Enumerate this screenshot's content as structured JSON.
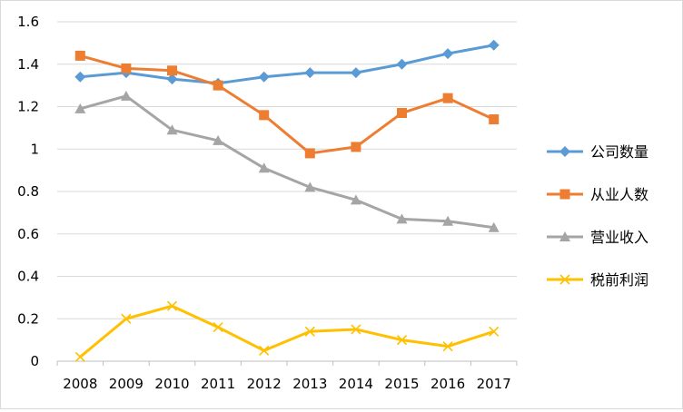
{
  "chart_data": {
    "type": "line",
    "title": "",
    "xlabel": "",
    "ylabel": "",
    "x": [
      "2008",
      "2009",
      "2010",
      "2011",
      "2012",
      "2013",
      "2014",
      "2015",
      "2016",
      "2017"
    ],
    "ylim": [
      0,
      1.6
    ],
    "yticks": [
      "0",
      "0.2",
      "0.4",
      "0.6",
      "0.8",
      "1",
      "1.2",
      "1.4",
      "1.6"
    ],
    "grid": true,
    "legend_position": "right",
    "series": [
      {
        "name": "公司数量",
        "color": "#5b9bd5",
        "marker": "diamond",
        "values": [
          1.34,
          1.36,
          1.33,
          1.31,
          1.34,
          1.36,
          1.36,
          1.4,
          1.45,
          1.49
        ]
      },
      {
        "name": "从业人数",
        "color": "#ed7d31",
        "marker": "square",
        "values": [
          1.44,
          1.38,
          1.37,
          1.3,
          1.16,
          0.98,
          1.01,
          1.17,
          1.24,
          1.14
        ]
      },
      {
        "name": "营业收入",
        "color": "#a5a5a5",
        "marker": "triangle",
        "values": [
          1.19,
          1.25,
          1.09,
          1.04,
          0.91,
          0.82,
          0.76,
          0.67,
          0.66,
          0.63
        ]
      },
      {
        "name": "税前利润",
        "color": "#ffc000",
        "marker": "x",
        "values": [
          0.02,
          0.2,
          0.26,
          0.16,
          0.05,
          0.14,
          0.15,
          0.1,
          0.07,
          0.14
        ]
      }
    ]
  }
}
